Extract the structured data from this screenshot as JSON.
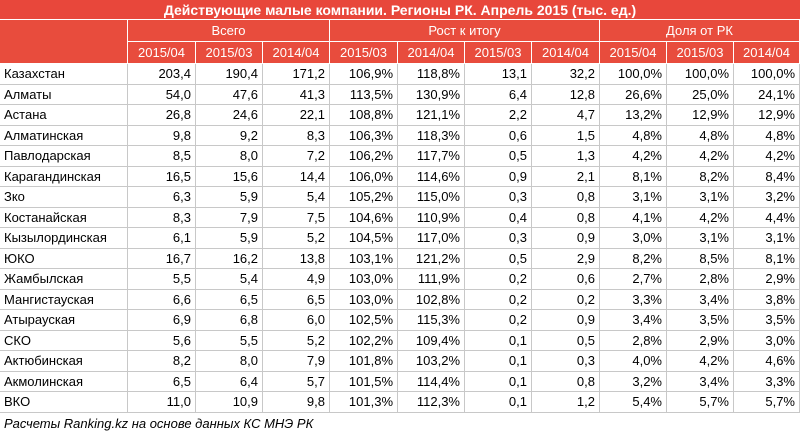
{
  "table": {
    "title": "Действующие малые компании. Регионы РК. Апрель 2015 (тыс. ед.)",
    "groups": [
      "Всего",
      "Рост к итогу",
      "Доля от РК"
    ],
    "periods": [
      "2015/04",
      "2015/03",
      "2014/04",
      "2015/03",
      "2014/04",
      "2015/03",
      "2014/04",
      "2015/04",
      "2015/03",
      "2014/04"
    ],
    "rows": [
      [
        "Казахстан",
        "203,4",
        "190,4",
        "171,2",
        "106,9%",
        "118,8%",
        "13,1",
        "32,2",
        "100,0%",
        "100,0%",
        "100,0%"
      ],
      [
        "Алматы",
        "54,0",
        "47,6",
        "41,3",
        "113,5%",
        "130,9%",
        "6,4",
        "12,8",
        "26,6%",
        "25,0%",
        "24,1%"
      ],
      [
        "Астана",
        "26,8",
        "24,6",
        "22,1",
        "108,8%",
        "121,1%",
        "2,2",
        "4,7",
        "13,2%",
        "12,9%",
        "12,9%"
      ],
      [
        "Алматинская",
        "9,8",
        "9,2",
        "8,3",
        "106,3%",
        "118,3%",
        "0,6",
        "1,5",
        "4,8%",
        "4,8%",
        "4,8%"
      ],
      [
        "Павлодарская",
        "8,5",
        "8,0",
        "7,2",
        "106,2%",
        "117,7%",
        "0,5",
        "1,3",
        "4,2%",
        "4,2%",
        "4,2%"
      ],
      [
        "Карагандинская",
        "16,5",
        "15,6",
        "14,4",
        "106,0%",
        "114,6%",
        "0,9",
        "2,1",
        "8,1%",
        "8,2%",
        "8,4%"
      ],
      [
        "Зко",
        "6,3",
        "5,9",
        "5,4",
        "105,2%",
        "115,0%",
        "0,3",
        "0,8",
        "3,1%",
        "3,1%",
        "3,2%"
      ],
      [
        "Костанайская",
        "8,3",
        "7,9",
        "7,5",
        "104,6%",
        "110,9%",
        "0,4",
        "0,8",
        "4,1%",
        "4,2%",
        "4,4%"
      ],
      [
        "Кызылординская",
        "6,1",
        "5,9",
        "5,2",
        "104,5%",
        "117,0%",
        "0,3",
        "0,9",
        "3,0%",
        "3,1%",
        "3,1%"
      ],
      [
        "ЮКО",
        "16,7",
        "16,2",
        "13,8",
        "103,1%",
        "121,2%",
        "0,5",
        "2,9",
        "8,2%",
        "8,5%",
        "8,1%"
      ],
      [
        "Жамбылская",
        "5,5",
        "5,4",
        "4,9",
        "103,0%",
        "111,9%",
        "0,2",
        "0,6",
        "2,7%",
        "2,8%",
        "2,9%"
      ],
      [
        "Мангистауская",
        "6,6",
        "6,5",
        "6,5",
        "103,0%",
        "102,8%",
        "0,2",
        "0,2",
        "3,3%",
        "3,4%",
        "3,8%"
      ],
      [
        "Атырауская",
        "6,9",
        "6,8",
        "6,0",
        "102,5%",
        "115,3%",
        "0,2",
        "0,9",
        "3,4%",
        "3,5%",
        "3,5%"
      ],
      [
        "СКО",
        "5,6",
        "5,5",
        "5,2",
        "102,2%",
        "109,4%",
        "0,1",
        "0,5",
        "2,8%",
        "2,9%",
        "3,0%"
      ],
      [
        "Актюбинская",
        "8,2",
        "8,0",
        "7,9",
        "101,8%",
        "103,2%",
        "0,1",
        "0,3",
        "4,0%",
        "4,2%",
        "4,6%"
      ],
      [
        "Акмолинская",
        "6,5",
        "6,4",
        "5,7",
        "101,5%",
        "114,4%",
        "0,1",
        "0,8",
        "3,2%",
        "3,4%",
        "3,3%"
      ],
      [
        "ВКО",
        "11,0",
        "10,9",
        "9,8",
        "101,3%",
        "112,3%",
        "0,1",
        "1,2",
        "5,4%",
        "5,7%",
        "5,7%"
      ]
    ],
    "footer": "Расчеты Ranking.kz на основе данных КС МНЭ РК"
  }
}
